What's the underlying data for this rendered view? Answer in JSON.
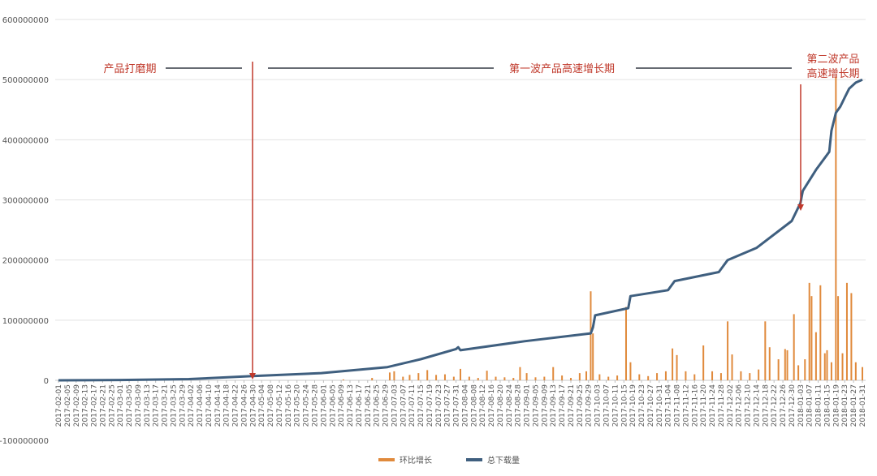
{
  "chart_data": {
    "type": "bar",
    "ylim": [
      -100000000,
      600000000
    ],
    "y_ticks": [
      600000000,
      500000000,
      400000000,
      300000000,
      200000000,
      100000000,
      0,
      -100000000
    ],
    "grid": true,
    "legend_position": "bottom",
    "x_ticks": [
      "2017-02-01",
      "2017-02-05",
      "2017-02-09",
      "2017-02-13",
      "2017-02-17",
      "2017-02-21",
      "2017-02-25",
      "2017-03-01",
      "2017-03-05",
      "2017-03-09",
      "2017-03-13",
      "2017-03-17",
      "2017-03-21",
      "2017-03-25",
      "2017-03-29",
      "2017-04-02",
      "2017-04-06",
      "2017-04-10",
      "2017-04-14",
      "2017-04-18",
      "2017-04-22",
      "2017-04-26",
      "2017-04-30",
      "2017-05-04",
      "2017-05-08",
      "2017-05-12",
      "2017-05-16",
      "2017-05-20",
      "2017-05-24",
      "2017-05-28",
      "2017-06-01",
      "2017-06-05",
      "2017-06-09",
      "2017-06-13",
      "2017-06-17",
      "2017-06-21",
      "2017-06-25",
      "2017-06-29",
      "2017-07-03",
      "2017-07-07",
      "2017-07-11",
      "2017-07-15",
      "2017-07-19",
      "2017-07-23",
      "2017-07-27",
      "2017-07-31",
      "2017-08-04",
      "2017-08-08",
      "2017-08-12",
      "2017-08-16",
      "2017-08-20",
      "2017-08-24",
      "2017-08-28",
      "2017-09-01",
      "2017-09-05",
      "2017-09-09",
      "2017-09-13",
      "2017-09-17",
      "2017-09-21",
      "2017-09-25",
      "2017-09-29",
      "2017-10-03",
      "2017-10-07",
      "2017-10-11",
      "2017-10-15",
      "2017-10-19",
      "2017-10-23",
      "2017-10-27",
      "2017-10-31",
      "2017-11-04",
      "2017-11-08",
      "2017-11-12",
      "2017-11-16",
      "2017-11-20",
      "2017-11-24",
      "2017-11-28",
      "2017-12-02",
      "2017-12-06",
      "2017-12-10",
      "2017-12-14",
      "2017-12-18",
      "2017-12-22",
      "2017-12-26",
      "2017-12-30",
      "2018-01-03",
      "2018-01-07",
      "2018-01-11",
      "2018-01-15",
      "2018-01-19",
      "2018-01-23",
      "2018-01-27",
      "2018-01-31"
    ],
    "series": [
      {
        "name": "环比增长",
        "kind": "bar",
        "color": "#e08a3c",
        "points": [
          [
            "2017-06-10",
            1500000
          ],
          [
            "2017-06-23",
            4000000
          ],
          [
            "2017-07-01",
            13000000
          ],
          [
            "2017-07-03",
            15000000
          ],
          [
            "2017-07-07",
            6000000
          ],
          [
            "2017-07-10",
            9000000
          ],
          [
            "2017-07-14",
            12000000
          ],
          [
            "2017-07-18",
            17000000
          ],
          [
            "2017-07-22",
            9000000
          ],
          [
            "2017-07-26",
            10000000
          ],
          [
            "2017-07-30",
            6000000
          ],
          [
            "2017-08-02",
            19000000
          ],
          [
            "2017-08-06",
            6000000
          ],
          [
            "2017-08-10",
            4000000
          ],
          [
            "2017-08-14",
            16000000
          ],
          [
            "2017-08-18",
            6000000
          ],
          [
            "2017-08-22",
            5000000
          ],
          [
            "2017-08-26",
            4000000
          ],
          [
            "2017-08-29",
            22000000
          ],
          [
            "2017-09-01",
            12000000
          ],
          [
            "2017-09-05",
            5000000
          ],
          [
            "2017-09-09",
            6000000
          ],
          [
            "2017-09-13",
            22000000
          ],
          [
            "2017-09-17",
            8000000
          ],
          [
            "2017-09-21",
            4000000
          ],
          [
            "2017-09-25",
            12000000
          ],
          [
            "2017-09-28",
            15000000
          ],
          [
            "2017-09-30",
            148000000
          ],
          [
            "2017-10-01",
            78000000
          ],
          [
            "2017-10-04",
            10000000
          ],
          [
            "2017-10-08",
            6000000
          ],
          [
            "2017-10-12",
            8000000
          ],
          [
            "2017-10-16",
            122000000
          ],
          [
            "2017-10-18",
            30000000
          ],
          [
            "2017-10-22",
            10000000
          ],
          [
            "2017-10-26",
            7000000
          ],
          [
            "2017-10-30",
            12000000
          ],
          [
            "2017-11-03",
            15000000
          ],
          [
            "2017-11-06",
            53000000
          ],
          [
            "2017-11-08",
            42000000
          ],
          [
            "2017-11-12",
            15000000
          ],
          [
            "2017-11-16",
            10000000
          ],
          [
            "2017-11-20",
            58000000
          ],
          [
            "2017-11-24",
            15000000
          ],
          [
            "2017-11-28",
            12000000
          ],
          [
            "2017-12-01",
            98000000
          ],
          [
            "2017-12-03",
            43000000
          ],
          [
            "2017-12-07",
            15000000
          ],
          [
            "2017-12-11",
            12000000
          ],
          [
            "2017-12-15",
            18000000
          ],
          [
            "2017-12-18",
            98000000
          ],
          [
            "2017-12-20",
            55000000
          ],
          [
            "2017-12-24",
            35000000
          ],
          [
            "2017-12-27",
            52000000
          ],
          [
            "2017-12-28",
            50000000
          ],
          [
            "2017-12-31",
            110000000
          ],
          [
            "2018-01-02",
            25000000
          ],
          [
            "2018-01-05",
            35000000
          ],
          [
            "2018-01-07",
            162000000
          ],
          [
            "2018-01-08",
            140000000
          ],
          [
            "2018-01-10",
            80000000
          ],
          [
            "2018-01-12",
            158000000
          ],
          [
            "2018-01-14",
            45000000
          ],
          [
            "2018-01-15",
            50000000
          ],
          [
            "2018-01-17",
            30000000
          ],
          [
            "2018-01-19",
            505000000
          ],
          [
            "2018-01-20",
            140000000
          ],
          [
            "2018-01-22",
            45000000
          ],
          [
            "2018-01-24",
            162000000
          ],
          [
            "2018-01-26",
            145000000
          ],
          [
            "2018-01-28",
            30000000
          ],
          [
            "2018-01-31",
            22000000
          ]
        ]
      },
      {
        "name": "总下载量",
        "kind": "line",
        "color": "#3f5f7f",
        "points": [
          [
            "2017-02-01",
            0
          ],
          [
            "2017-03-01",
            500000
          ],
          [
            "2017-04-01",
            2000000
          ],
          [
            "2017-04-30",
            7000000
          ],
          [
            "2017-05-31",
            12000000
          ],
          [
            "2017-06-30",
            22000000
          ],
          [
            "2017-07-15",
            35000000
          ],
          [
            "2017-07-31",
            52000000
          ],
          [
            "2017-08-01",
            55000000
          ],
          [
            "2017-08-02",
            50000000
          ],
          [
            "2017-08-31",
            65000000
          ],
          [
            "2017-09-30",
            78000000
          ],
          [
            "2017-10-01",
            88000000
          ],
          [
            "2017-10-02",
            108000000
          ],
          [
            "2017-10-17",
            120000000
          ],
          [
            "2017-10-18",
            140000000
          ],
          [
            "2017-11-04",
            150000000
          ],
          [
            "2017-11-07",
            165000000
          ],
          [
            "2017-11-27",
            180000000
          ],
          [
            "2017-12-01",
            200000000
          ],
          [
            "2017-12-14",
            220000000
          ],
          [
            "2017-12-30",
            265000000
          ],
          [
            "2018-01-03",
            295000000
          ],
          [
            "2018-01-04",
            315000000
          ],
          [
            "2018-01-10",
            350000000
          ],
          [
            "2018-01-16",
            380000000
          ],
          [
            "2018-01-17",
            415000000
          ],
          [
            "2018-01-19",
            445000000
          ],
          [
            "2018-01-21",
            455000000
          ],
          [
            "2018-01-23",
            470000000
          ],
          [
            "2018-01-25",
            485000000
          ],
          [
            "2018-01-28",
            495000000
          ],
          [
            "2018-01-31",
            500000000
          ]
        ]
      }
    ],
    "annotations": [
      {
        "id": "phase1",
        "text": "产品打磨期"
      },
      {
        "id": "phase2",
        "text": "第一波产品高速增长期"
      },
      {
        "id": "phase3a",
        "text": "第二波产品"
      },
      {
        "id": "phase3b",
        "text": "高速增长期"
      }
    ],
    "legend": [
      "环比增长",
      "总下载量"
    ]
  }
}
